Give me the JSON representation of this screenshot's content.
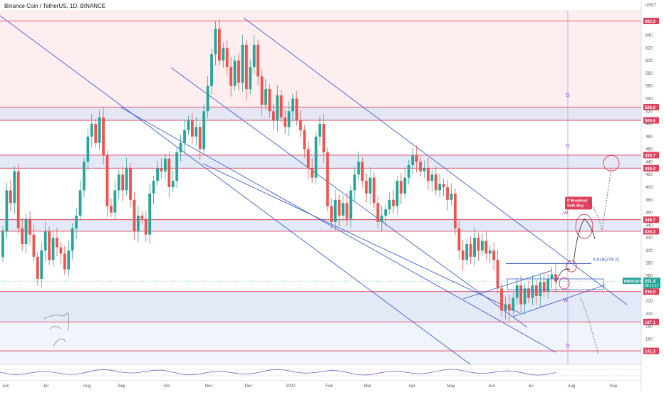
{
  "header": {
    "title": "Binance Coin / TetherUS, 1D, BINANCE"
  },
  "axis": {
    "unit": "USDT"
  },
  "colors": {
    "up": "#26a69a",
    "down": "#ef5350",
    "level": "#e0405a",
    "trend": "#3f5fd0",
    "zoneRed": "#fde3e6",
    "zoneBlue": "#dde3f5",
    "zoneLight": "#eef1fa",
    "label": "#e0405a",
    "wmark": "#9c3fc8",
    "price": "#26a69a"
  },
  "chart_data": {
    "type": "candlestick",
    "ylim": [
      120,
      680
    ],
    "y_ticks": [
      160,
      180,
      200,
      220,
      240,
      260,
      280,
      300,
      320,
      340,
      360,
      380,
      400,
      420,
      440,
      460,
      480,
      500,
      520,
      540,
      560,
      580,
      600,
      620,
      640
    ],
    "x_ticks": [
      "Jun",
      "Jul",
      "Aug",
      "Sep",
      "Oct",
      "Nov",
      "Dec",
      "2022",
      "Feb",
      "Mar",
      "Apr",
      "May",
      "Jun",
      "Jul",
      "Aug",
      "Sep"
    ],
    "levels": [
      {
        "value": 662.6,
        "label": "662.6"
      },
      {
        "value": 526.6,
        "label": "526.6"
      },
      {
        "value": 505.6,
        "label": "505.6"
      },
      {
        "value": 450.7,
        "label": "450.7"
      },
      {
        "value": 430.0,
        "label": "430.0"
      },
      {
        "value": 348.7,
        "label": "348.7"
      },
      {
        "value": 330.3,
        "label": "330.3"
      },
      {
        "value": 235.0,
        "label": "235.0"
      },
      {
        "value": 187.1,
        "label": "187.1"
      },
      {
        "value": 141.3,
        "label": "141.3"
      }
    ],
    "price": {
      "symbol": "BNBUSDT",
      "value": "251.4",
      "countdown": "08:17:17"
    },
    "annotations": {
      "breakout": [
        "If Breakout",
        "Safe Buy"
      ],
      "fib": "0.618(279.2)",
      "marks": [
        "D",
        "D",
        "D",
        "W",
        "W"
      ]
    },
    "series": [
      {
        "values": [
          [
            290,
            330
          ],
          [
            330,
            395
          ],
          [
            395,
            375
          ],
          [
            375,
            425
          ],
          [
            425,
            335
          ],
          [
            335,
            310
          ],
          [
            310,
            350
          ],
          [
            350,
            325
          ],
          [
            325,
            290
          ],
          [
            290,
            255
          ],
          [
            255,
            300
          ],
          [
            300,
            330
          ],
          [
            330,
            285
          ],
          [
            285,
            320
          ],
          [
            320,
            305
          ],
          [
            305,
            295
          ],
          [
            295,
            270
          ],
          [
            270,
            300
          ],
          [
            300,
            335
          ],
          [
            335,
            355
          ],
          [
            355,
            395
          ],
          [
            395,
            440
          ],
          [
            440,
            480
          ],
          [
            480,
            500
          ],
          [
            500,
            470
          ],
          [
            470,
            510
          ],
          [
            510,
            450
          ],
          [
            450,
            370
          ],
          [
            370,
            360
          ],
          [
            360,
            395
          ],
          [
            395,
            420
          ],
          [
            420,
            395
          ],
          [
            395,
            430
          ],
          [
            430,
            380
          ],
          [
            380,
            330
          ],
          [
            330,
            355
          ],
          [
            355,
            350
          ],
          [
            350,
            325
          ],
          [
            325,
            390
          ],
          [
            390,
            410
          ],
          [
            410,
            430
          ],
          [
            430,
            425
          ],
          [
            425,
            445
          ],
          [
            445,
            400
          ],
          [
            400,
            410
          ],
          [
            410,
            455
          ],
          [
            455,
            470
          ],
          [
            470,
            490
          ],
          [
            490,
            505
          ],
          [
            505,
            480
          ],
          [
            480,
            495
          ],
          [
            495,
            460
          ],
          [
            460,
            520
          ],
          [
            520,
            560
          ],
          [
            560,
            610
          ],
          [
            610,
            650
          ],
          [
            650,
            600
          ],
          [
            600,
            620
          ],
          [
            620,
            590
          ],
          [
            590,
            560
          ],
          [
            560,
            600
          ],
          [
            600,
            565
          ],
          [
            565,
            625
          ],
          [
            625,
            555
          ],
          [
            555,
            590
          ],
          [
            590,
            625
          ],
          [
            625,
            575
          ],
          [
            575,
            530
          ],
          [
            530,
            555
          ],
          [
            555,
            520
          ],
          [
            520,
            505
          ],
          [
            505,
            545
          ],
          [
            545,
            510
          ],
          [
            510,
            495
          ],
          [
            495,
            520
          ],
          [
            520,
            540
          ],
          [
            540,
            505
          ],
          [
            505,
            490
          ],
          [
            490,
            460
          ],
          [
            460,
            430
          ],
          [
            430,
            415
          ],
          [
            415,
            480
          ],
          [
            480,
            500
          ],
          [
            500,
            455
          ],
          [
            455,
            370
          ],
          [
            370,
            345
          ],
          [
            345,
            380
          ],
          [
            380,
            355
          ],
          [
            355,
            375
          ],
          [
            375,
            350
          ],
          [
            350,
            395
          ],
          [
            395,
            420
          ],
          [
            420,
            440
          ],
          [
            440,
            410
          ],
          [
            410,
            390
          ],
          [
            390,
            415
          ],
          [
            415,
            375
          ],
          [
            375,
            345
          ],
          [
            345,
            355
          ],
          [
            355,
            365
          ],
          [
            365,
            380
          ],
          [
            380,
            370
          ],
          [
            370,
            410
          ],
          [
            410,
            390
          ],
          [
            390,
            415
          ],
          [
            415,
            435
          ],
          [
            435,
            450
          ],
          [
            450,
            440
          ],
          [
            440,
            425
          ],
          [
            425,
            430
          ],
          [
            430,
            410
          ],
          [
            410,
            420
          ],
          [
            420,
            395
          ],
          [
            395,
            405
          ],
          [
            405,
            400
          ],
          [
            400,
            380
          ],
          [
            380,
            390
          ],
          [
            390,
            335
          ],
          [
            335,
            300
          ],
          [
            300,
            285
          ],
          [
            285,
            310
          ],
          [
            310,
            290
          ],
          [
            290,
            320
          ],
          [
            320,
            300
          ],
          [
            300,
            315
          ],
          [
            315,
            295
          ],
          [
            295,
            300
          ],
          [
            300,
            285
          ],
          [
            285,
            240
          ],
          [
            240,
            205
          ],
          [
            205,
            215
          ],
          [
            215,
            205
          ],
          [
            205,
            225
          ],
          [
            225,
            245
          ],
          [
            245,
            215
          ],
          [
            215,
            240
          ],
          [
            240,
            225
          ],
          [
            225,
            245
          ],
          [
            245,
            228
          ],
          [
            228,
            250
          ],
          [
            250,
            235
          ],
          [
            235,
            255
          ],
          [
            255,
            262
          ],
          [
            262,
            251.4
          ]
        ]
      }
    ]
  }
}
